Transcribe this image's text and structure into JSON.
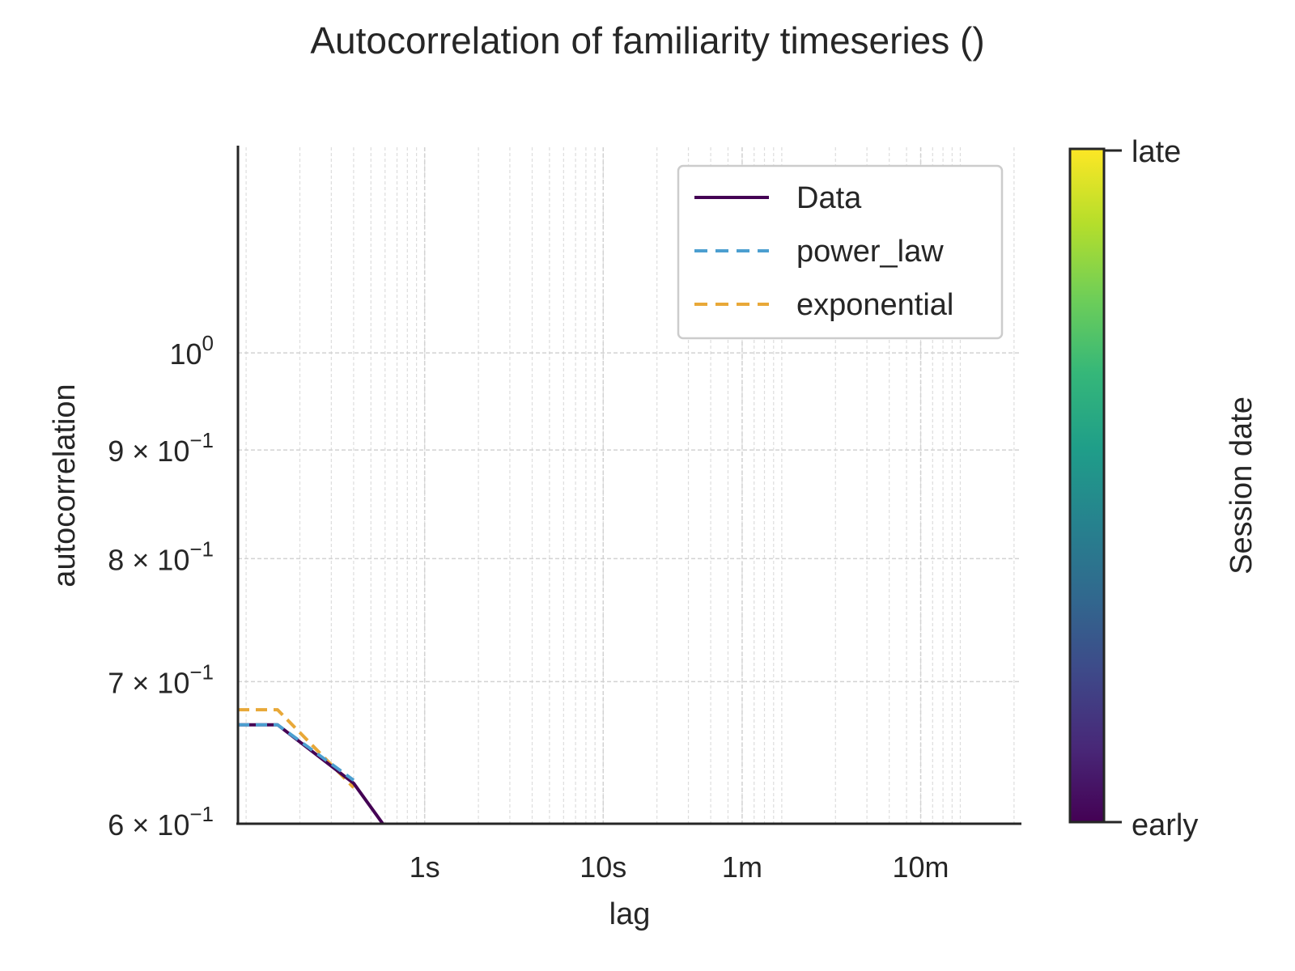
{
  "chart_data": {
    "type": "line",
    "title": "Autocorrelation of familiarity timeseries ()",
    "xlabel": "lag",
    "ylabel": "autocorrelation",
    "x_scale": "log",
    "y_scale": "log",
    "xlim": [
      0.09,
      2200
    ],
    "ylim": [
      0.6,
      1.25
    ],
    "grid": true,
    "legend": "top-right",
    "x_ticks": [
      {
        "value": 1,
        "label": "1s"
      },
      {
        "value": 10,
        "label": "10s"
      },
      {
        "value": 60,
        "label": "1m"
      },
      {
        "value": 600,
        "label": "10m"
      }
    ],
    "y_ticks": [
      {
        "value": 1.0,
        "mant": "",
        "base": "10",
        "exp": "0"
      },
      {
        "value": 0.9,
        "mant": "9 × ",
        "base": "10",
        "exp": "−1"
      },
      {
        "value": 0.8,
        "mant": "8 × ",
        "base": "10",
        "exp": "−1"
      },
      {
        "value": 0.7,
        "mant": "7 × ",
        "base": "10",
        "exp": "−1"
      },
      {
        "value": 0.6,
        "mant": "6 × ",
        "base": "10",
        "exp": "−1"
      }
    ],
    "series": [
      {
        "name": "Data",
        "style": "solid",
        "color": "#440154",
        "x": [
          0.09,
          0.15,
          0.4,
          0.6
        ],
        "y": [
          0.668,
          0.668,
          0.627,
          0.598
        ]
      },
      {
        "name": "power_law",
        "style": "dashed",
        "color": "#4c9fd0",
        "x": [
          0.09,
          0.15,
          0.4
        ],
        "y": [
          0.668,
          0.668,
          0.629
        ]
      },
      {
        "name": "exponential",
        "style": "dashed",
        "color": "#e8a838",
        "x": [
          0.09,
          0.15,
          0.4
        ],
        "y": [
          0.679,
          0.679,
          0.624
        ]
      }
    ],
    "colorbar": {
      "label": "Session date",
      "top_label": "late",
      "bottom_label": "early",
      "colormap": [
        "#440154",
        "#482878",
        "#3e4989",
        "#31688e",
        "#26828e",
        "#1f9e89",
        "#35b779",
        "#6ece58",
        "#b5de2b",
        "#fde725"
      ]
    }
  }
}
